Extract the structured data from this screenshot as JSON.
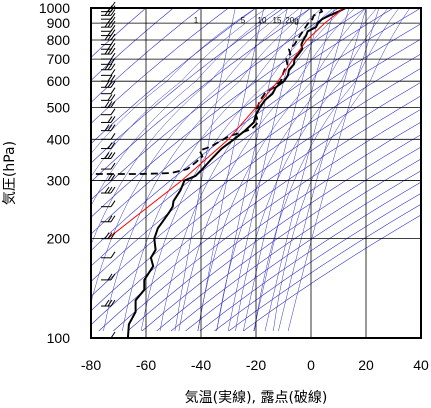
{
  "chart_data": {
    "type": "line",
    "title": "",
    "xlabel": "気温(実線), 露点(破線)",
    "ylabel": "気圧(hPa)",
    "xlim": [
      -80,
      40
    ],
    "ylim": [
      1000,
      100
    ],
    "y_scale": "log",
    "x_ticks": [
      "-80",
      "-60",
      "-40",
      "-20",
      "0",
      "20",
      "40"
    ],
    "y_ticks": [
      "100",
      "200",
      "300",
      "400",
      "500",
      "600",
      "700",
      "800",
      "900",
      "1000"
    ],
    "mixing_ratio_labels": [
      "1",
      "5",
      "10",
      "15",
      "20g"
    ],
    "grid": true,
    "colors": {
      "temperature": "#000000",
      "dewpoint": "#000000",
      "parcel": "#ff0000",
      "background_lines": "#3333cc",
      "grid": "#000000"
    },
    "series": [
      {
        "name": "気温",
        "style": "solid",
        "points": [
          [
            12.6,
            1000
          ],
          [
            10.0,
            975
          ],
          [
            6.8,
            950
          ],
          [
            4.0,
            925
          ],
          [
            2.6,
            900
          ],
          [
            1.8,
            875
          ],
          [
            -1.2,
            850
          ],
          [
            -1.8,
            825
          ],
          [
            -2.8,
            800
          ],
          [
            -3.5,
            775
          ],
          [
            -3.2,
            750
          ],
          [
            -4.5,
            725
          ],
          [
            -6.0,
            700
          ],
          [
            -6.2,
            675
          ],
          [
            -8.0,
            650
          ],
          [
            -8.4,
            625
          ],
          [
            -9.8,
            600
          ],
          [
            -12.8,
            575
          ],
          [
            -14.0,
            550
          ],
          [
            -16.8,
            525
          ],
          [
            -18.5,
            500
          ],
          [
            -20.0,
            475
          ],
          [
            -20.8,
            450
          ],
          [
            -24.0,
            425
          ],
          [
            -28.0,
            400
          ],
          [
            -32.5,
            375
          ],
          [
            -36.0,
            350
          ],
          [
            -39.5,
            325
          ],
          [
            -42.0,
            310
          ],
          [
            -46.0,
            300
          ],
          [
            -47.5,
            280
          ],
          [
            -50.0,
            260
          ],
          [
            -50.3,
            250
          ],
          [
            -51.6,
            240
          ],
          [
            -54.0,
            225
          ],
          [
            -55.7,
            215
          ],
          [
            -57.0,
            200
          ],
          [
            -56.5,
            185
          ],
          [
            -58.2,
            175
          ],
          [
            -57.4,
            165
          ],
          [
            -60.6,
            150
          ],
          [
            -60.6,
            140
          ],
          [
            -63.8,
            130
          ],
          [
            -63.8,
            120
          ],
          [
            -66.2,
            110
          ],
          [
            -66.6,
            100
          ]
        ]
      },
      {
        "name": "露点",
        "style": "dashed",
        "points": [
          [
            3.5,
            1000
          ],
          [
            4.0,
            975
          ],
          [
            1.0,
            950
          ],
          [
            0.5,
            925
          ],
          [
            -1.0,
            900
          ],
          [
            -2.0,
            875
          ],
          [
            -3.0,
            850
          ],
          [
            -4.0,
            825
          ],
          [
            -5.0,
            800
          ],
          [
            -6.0,
            775
          ],
          [
            -8.0,
            750
          ],
          [
            -7.5,
            725
          ],
          [
            -9.0,
            700
          ],
          [
            -8.6,
            675
          ],
          [
            -9.6,
            650
          ],
          [
            -10.4,
            625
          ],
          [
            -11.0,
            600
          ],
          [
            -13.5,
            575
          ],
          [
            -16.8,
            550
          ],
          [
            -18.5,
            525
          ],
          [
            -19.5,
            500
          ],
          [
            -20.0,
            475
          ],
          [
            -19.2,
            450
          ],
          [
            -21.6,
            430
          ],
          [
            -25.0,
            420
          ],
          [
            -29.5,
            410
          ],
          [
            -33.0,
            395
          ],
          [
            -36.5,
            380
          ],
          [
            -40.5,
            370
          ],
          [
            -39.5,
            355
          ],
          [
            -42.0,
            340
          ],
          [
            -45.0,
            325
          ],
          [
            -51.0,
            316
          ],
          [
            -62.0,
            314
          ],
          [
            -80.0,
            314
          ]
        ]
      },
      {
        "name": "",
        "style": "parcel",
        "points": [
          [
            12.0,
            1000
          ],
          [
            5.0,
            900
          ],
          [
            -1.5,
            800
          ],
          [
            -6.5,
            700
          ],
          [
            -12.0,
            600
          ],
          [
            -20.0,
            500
          ],
          [
            -30.0,
            400
          ],
          [
            -47.0,
            300
          ],
          [
            -74.0,
            200
          ]
        ]
      }
    ]
  }
}
